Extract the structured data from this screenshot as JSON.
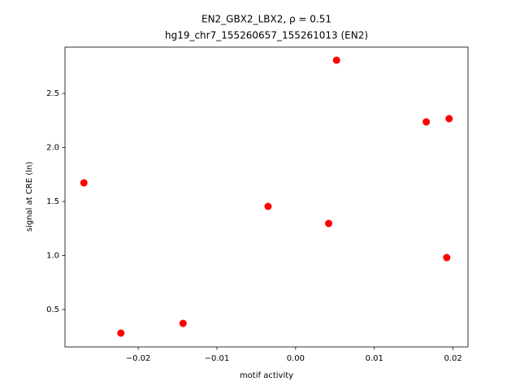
{
  "chart_data": {
    "type": "scatter",
    "title": "EN2_GBX2_LBX2, ρ = 0.51",
    "subtitle": "hg19_chr7_155260657_155261013 (EN2)",
    "x_label": "motif activity",
    "y_label": "signal at CRE (ln)",
    "color": "#ff0000",
    "series": [
      {
        "x": [
          -0.0269,
          -0.0222,
          -0.0143,
          -0.0035,
          0.0042,
          0.0052,
          0.0166,
          0.0195,
          0.0192
        ],
        "values": [
          1.673,
          0.282,
          0.372,
          1.455,
          1.297,
          2.808,
          2.237,
          2.267,
          0.981
        ]
      }
    ],
    "xlim": [
      -0.0293,
      0.0219
    ],
    "ylim": [
      0.154,
      2.929
    ],
    "xticks": [
      {
        "value": -0.02,
        "label": "−0.02"
      },
      {
        "value": -0.01,
        "label": "−0.01"
      },
      {
        "value": 0,
        "label": "0.00"
      },
      0.01,
      0.02
    ],
    "yticks": [
      0.5,
      {
        "value": 1,
        "label": "1.0"
      },
      1.5,
      {
        "value": 2,
        "label": "2.0"
      },
      2.5
    ]
  }
}
